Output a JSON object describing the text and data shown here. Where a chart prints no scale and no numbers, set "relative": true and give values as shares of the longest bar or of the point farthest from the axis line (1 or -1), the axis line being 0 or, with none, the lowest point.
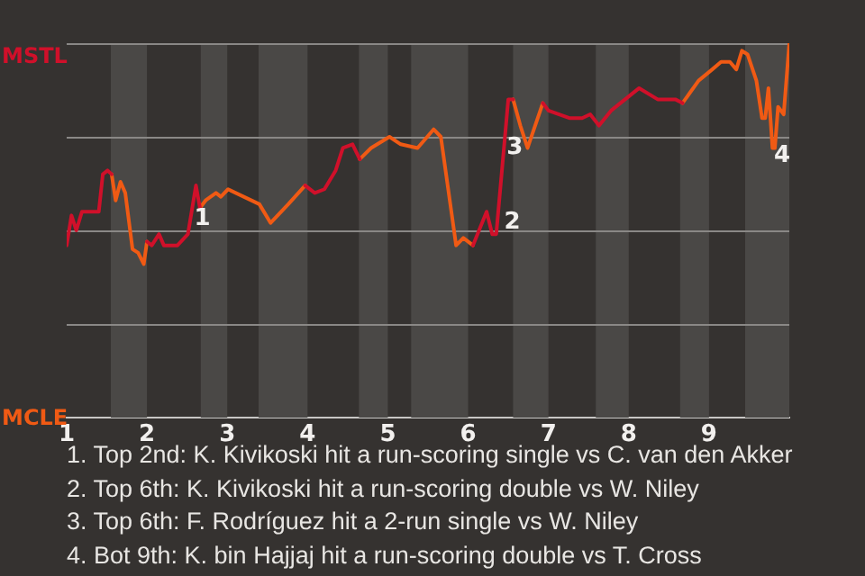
{
  "chart_data": {
    "type": "line",
    "relative": true,
    "x": [
      1.0,
      1.06,
      1.12,
      1.19,
      1.4,
      1.45,
      1.51,
      1.56,
      1.61,
      1.67,
      1.73,
      1.82,
      1.89,
      1.96,
      2.0,
      2.06,
      2.15,
      2.21,
      2.38,
      2.51,
      2.61,
      2.66,
      2.73,
      2.86,
      2.92,
      3.01,
      3.4,
      3.54,
      3.76,
      3.97,
      4.09,
      4.21,
      4.35,
      4.44,
      4.56,
      4.65,
      4.79,
      5.02,
      5.16,
      5.37,
      5.57,
      5.66,
      5.85,
      5.94,
      6.06,
      6.23,
      6.3,
      6.35,
      6.5,
      6.56,
      6.65,
      6.74,
      6.93,
      7.0,
      7.26,
      7.42,
      7.52,
      7.63,
      7.78,
      8.13,
      8.36,
      8.58,
      8.67,
      8.87,
      9.04,
      9.15,
      9.26,
      9.34,
      9.41,
      9.48,
      9.59,
      9.66,
      9.7,
      9.74,
      9.79,
      9.82,
      9.86,
      9.93,
      10.0
    ],
    "series": [
      {
        "color": "#d0102a",
        "values": [
          0.46,
          0.54,
          0.5,
          0.55,
          0.55,
          0.65,
          0.66,
          0.65,
          null,
          null,
          null,
          null,
          null,
          null,
          0.47,
          0.46,
          0.49,
          0.46,
          0.46,
          0.49,
          0.62,
          0.56,
          null,
          null,
          null,
          null,
          null,
          null,
          null,
          0.62,
          0.6,
          0.61,
          0.66,
          0.72,
          0.73,
          0.69,
          null,
          null,
          null,
          null,
          null,
          null,
          null,
          null,
          0.46,
          0.55,
          0.49,
          0.49,
          0.85,
          0.85,
          null,
          null,
          0.84,
          0.82,
          0.8,
          0.8,
          0.81,
          0.78,
          0.82,
          0.88,
          0.85,
          0.85,
          0.84,
          null,
          null,
          null,
          null,
          null,
          null,
          null,
          null,
          null,
          null,
          null,
          null,
          null,
          null,
          null,
          null
        ]
      },
      {
        "color": "#f05a14",
        "values": [
          null,
          null,
          null,
          null,
          null,
          null,
          null,
          0.65,
          0.58,
          0.63,
          0.6,
          0.45,
          0.44,
          0.41,
          0.47,
          null,
          null,
          null,
          null,
          null,
          null,
          0.56,
          0.58,
          0.6,
          0.59,
          0.61,
          0.57,
          0.52,
          0.57,
          0.62,
          null,
          null,
          null,
          null,
          null,
          0.69,
          0.72,
          0.75,
          0.73,
          0.72,
          0.77,
          0.75,
          0.46,
          0.48,
          0.46,
          null,
          null,
          null,
          null,
          0.85,
          0.78,
          0.72,
          0.84,
          null,
          null,
          null,
          null,
          null,
          null,
          null,
          null,
          null,
          0.84,
          0.9,
          0.93,
          0.95,
          0.95,
          0.93,
          0.98,
          0.97,
          0.9,
          0.8,
          0.8,
          0.88,
          0.72,
          0.72,
          0.83,
          0.81,
          1
        ]
      }
    ],
    "xlim": [
      1,
      10
    ],
    "xticks": [
      1,
      2,
      3,
      4,
      5,
      6,
      7,
      8,
      9
    ],
    "grid": "y",
    "marker": "none",
    "line_style": "solid",
    "legend": false,
    "bands": [
      {
        "axis": "x",
        "from": 1.55,
        "to": 2,
        "color": "#4a4846"
      },
      {
        "axis": "x",
        "from": 2.67,
        "to": 3,
        "color": "#4a4846"
      },
      {
        "axis": "x",
        "from": 3.39,
        "to": 4,
        "color": "#4a4846"
      },
      {
        "axis": "x",
        "from": 4.64,
        "to": 5,
        "color": "#4a4846"
      },
      {
        "axis": "x",
        "from": 5.29,
        "to": 6,
        "color": "#4a4846"
      },
      {
        "axis": "x",
        "from": 6.56,
        "to": 7,
        "color": "#4a4846"
      },
      {
        "axis": "x",
        "from": 7.59,
        "to": 8,
        "color": "#4a4846"
      },
      {
        "axis": "x",
        "from": 8.64,
        "to": 9,
        "color": "#4a4846"
      },
      {
        "axis": "x",
        "from": 9.45,
        "to": 10,
        "color": "#4a4846"
      }
    ],
    "annotations": [
      "MSTL",
      "MCLE",
      {
        "text": "1",
        "x": 2.69,
        "y": 0.53
      },
      {
        "text": "2",
        "x": 6.55,
        "y": 0.52
      },
      {
        "text": "3",
        "x": 6.58,
        "y": 0.72
      },
      {
        "text": "4",
        "x": 9.91,
        "y": 0.7
      },
      "1. Top 2nd: K. Kivikoski hit a run-scoring single vs C. van den Akker",
      "2. Top 6th: K. Kivikoski hit a run-scoring double vs W. Niley",
      "3. Top 6th: F. Rodríguez hit a 2-run single vs W. Niley",
      "4. Bot 9th: K. bin Hajjaj hit a run-scoring double vs T. Cross"
    ]
  }
}
